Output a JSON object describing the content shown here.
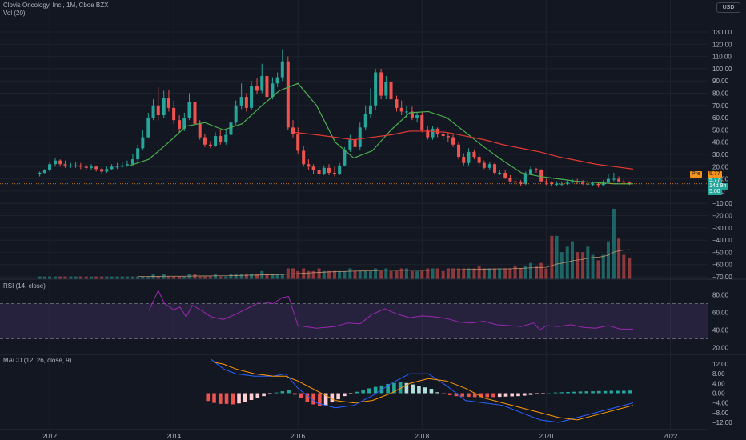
{
  "header": {
    "title": "Clovis Oncology, Inc., 1M, Cboe BZX",
    "vol_label": "Vol (20)",
    "currency_button": "USD"
  },
  "price_tags": {
    "pre_label": "Pre",
    "pre_value": "5.77",
    "last_value": "5.77",
    "countdown": "14d 9h",
    "last_extra": "5.00",
    "pre_color": "#f7931a",
    "last_color": "#26a69a"
  },
  "rsi_panel": {
    "label": "RSI (14, close)"
  },
  "macd_panel": {
    "label": "MACD (12, 26, close, 9)"
  },
  "time_axis": {
    "labels": [
      "2012",
      "2014",
      "2016",
      "2018",
      "2020",
      "2022"
    ]
  },
  "colors": {
    "bg": "#131722",
    "up": "#26a69a",
    "down": "#ef5350",
    "ma_fast": "#4caf50",
    "ma_slow": "#e53935",
    "rsi": "#9c27b0",
    "macd": "#2962ff",
    "signal": "#ff9800"
  },
  "chart_data": [
    {
      "type": "candlestick",
      "title": "Clovis Oncology, Inc., 1M, Cboe BZX",
      "ylim": [
        -70,
        130
      ],
      "y_ticks": [
        "130.00",
        "120.00",
        "110.00",
        "100.00",
        "90.00",
        "80.00",
        "70.00",
        "60.00",
        "50.00",
        "40.00",
        "30.00",
        "20.00",
        "10.00",
        "0.00",
        "−10.00",
        "−20.00",
        "−30.00",
        "−40.00",
        "−50.00",
        "−60.00",
        "−70.00"
      ],
      "x_range": [
        2011.2,
        2022.6
      ],
      "candles_x": [
        2011.84,
        2011.92,
        2012.0,
        2012.09,
        2012.17,
        2012.25,
        2012.34,
        2012.42,
        2012.5,
        2012.59,
        2012.67,
        2012.75,
        2012.84,
        2012.92,
        2013.0,
        2013.09,
        2013.17,
        2013.25,
        2013.34,
        2013.42,
        2013.5,
        2013.59,
        2013.67,
        2013.75,
        2013.84,
        2013.92,
        2014.0,
        2014.09,
        2014.17,
        2014.25,
        2014.34,
        2014.42,
        2014.5,
        2014.59,
        2014.67,
        2014.75,
        2014.84,
        2014.92,
        2015.0,
        2015.09,
        2015.17,
        2015.25,
        2015.34,
        2015.42,
        2015.5,
        2015.59,
        2015.67,
        2015.75,
        2015.84,
        2015.92,
        2016.0,
        2016.09,
        2016.17,
        2016.25,
        2016.34,
        2016.42,
        2016.5,
        2016.59,
        2016.67,
        2016.75,
        2016.84,
        2016.92,
        2017.0,
        2017.09,
        2017.17,
        2017.25,
        2017.34,
        2017.42,
        2017.5,
        2017.59,
        2017.67,
        2017.75,
        2017.84,
        2017.92,
        2018.0,
        2018.09,
        2018.17,
        2018.25,
        2018.34,
        2018.42,
        2018.5,
        2018.59,
        2018.67,
        2018.75,
        2018.84,
        2018.92,
        2019.0,
        2019.09,
        2019.17,
        2019.25,
        2019.34,
        2019.42,
        2019.5,
        2019.59,
        2019.67,
        2019.75,
        2019.84,
        2019.92,
        2020.0,
        2020.09,
        2020.17,
        2020.25,
        2020.34,
        2020.42,
        2020.5,
        2020.59,
        2020.67,
        2020.75,
        2020.84,
        2020.92,
        2021.0,
        2021.09,
        2021.17,
        2021.25,
        2021.34
      ],
      "open": [
        14,
        15,
        17,
        22,
        25,
        22,
        21,
        21,
        21,
        20,
        19,
        20,
        18,
        16,
        18,
        20,
        20,
        21,
        22,
        26,
        35,
        44,
        60,
        70,
        62,
        76,
        68,
        58,
        51,
        60,
        73,
        55,
        44,
        38,
        37,
        45,
        40,
        46,
        56,
        70,
        77,
        68,
        86,
        82,
        94,
        77,
        88,
        93,
        106,
        52,
        47,
        33,
        22,
        20,
        17,
        14,
        19,
        15,
        14,
        21,
        34,
        42,
        36,
        52,
        63,
        70,
        97,
        78,
        89,
        75,
        68,
        65,
        65,
        60,
        62,
        50,
        44,
        51,
        47,
        45,
        44,
        38,
        28,
        23,
        32,
        28,
        23,
        19,
        22,
        15,
        15,
        11,
        8,
        7,
        6,
        14,
        18,
        17,
        8,
        7,
        6,
        6,
        6,
        7,
        8,
        7,
        6,
        6,
        6,
        5,
        7,
        10,
        10,
        8,
        7
      ],
      "close": [
        15,
        17,
        22,
        25,
        22,
        21,
        21,
        21,
        20,
        19,
        20,
        18,
        16,
        18,
        20,
        20,
        21,
        22,
        26,
        35,
        44,
        60,
        70,
        62,
        76,
        68,
        58,
        51,
        60,
        73,
        55,
        44,
        38,
        37,
        45,
        40,
        46,
        56,
        70,
        77,
        68,
        86,
        82,
        94,
        77,
        88,
        93,
        106,
        52,
        47,
        33,
        22,
        20,
        17,
        14,
        19,
        15,
        14,
        21,
        34,
        42,
        36,
        52,
        63,
        70,
        97,
        78,
        89,
        75,
        68,
        65,
        65,
        60,
        62,
        50,
        44,
        51,
        47,
        45,
        44,
        38,
        28,
        23,
        32,
        28,
        23,
        19,
        22,
        15,
        15,
        11,
        8,
        7,
        6,
        14,
        18,
        17,
        8,
        7,
        6,
        6,
        6,
        7,
        8,
        7,
        6,
        6,
        6,
        5,
        7,
        10,
        10,
        8,
        7,
        6
      ],
      "high": [
        16,
        18,
        24,
        27,
        26,
        25,
        23,
        24,
        23,
        22,
        22,
        21,
        19,
        20,
        22,
        23,
        24,
        25,
        30,
        38,
        50,
        64,
        75,
        85,
        82,
        83,
        74,
        62,
        64,
        80,
        78,
        58,
        47,
        41,
        48,
        50,
        51,
        60,
        74,
        88,
        80,
        90,
        92,
        104,
        100,
        93,
        97,
        116,
        110,
        58,
        52,
        37,
        26,
        22,
        20,
        21,
        22,
        20,
        23,
        36,
        46,
        45,
        56,
        70,
        84,
        100,
        100,
        94,
        93,
        78,
        74,
        70,
        69,
        64,
        65,
        53,
        53,
        52,
        50,
        48,
        47,
        40,
        31,
        35,
        34,
        30,
        25,
        24,
        23,
        17,
        17,
        13,
        10,
        9,
        16,
        20,
        19,
        18,
        10,
        8,
        8,
        8,
        9,
        10,
        10,
        9,
        9,
        8,
        7,
        9,
        14,
        15,
        12,
        10,
        8
      ],
      "low": [
        12,
        14,
        16,
        20,
        20,
        19,
        19,
        19,
        18,
        17,
        17,
        16,
        14,
        15,
        17,
        18,
        19,
        20,
        21,
        24,
        34,
        43,
        58,
        58,
        60,
        65,
        55,
        48,
        49,
        58,
        53,
        42,
        36,
        35,
        36,
        38,
        38,
        44,
        54,
        67,
        65,
        66,
        79,
        80,
        74,
        75,
        85,
        90,
        50,
        44,
        30,
        20,
        17,
        14,
        12,
        13,
        13,
        12,
        13,
        20,
        32,
        34,
        34,
        50,
        60,
        66,
        75,
        75,
        72,
        65,
        62,
        60,
        58,
        56,
        48,
        42,
        42,
        44,
        42,
        40,
        36,
        26,
        21,
        21,
        26,
        21,
        18,
        17,
        13,
        13,
        10,
        7,
        5,
        4,
        5,
        13,
        15,
        7,
        5,
        4,
        4,
        4,
        5,
        6,
        6,
        5,
        5,
        4,
        3,
        4,
        6,
        8,
        7,
        6,
        5
      ],
      "volume": [
        1,
        1,
        1,
        1,
        1,
        1,
        1,
        1,
        1,
        1,
        1,
        1,
        1,
        1,
        1,
        1,
        1,
        1,
        1,
        1,
        1,
        1,
        2,
        1,
        2,
        1,
        1,
        1,
        1,
        2,
        2,
        1,
        1,
        1,
        2,
        1,
        1,
        2,
        2,
        2,
        2,
        2,
        2,
        3,
        2,
        2,
        2,
        2,
        4,
        4,
        3,
        4,
        3,
        3,
        4,
        3,
        3,
        3,
        3,
        3,
        4,
        3,
        3,
        3,
        3,
        4,
        3,
        4,
        3,
        3,
        4,
        4,
        3,
        3,
        3,
        4,
        4,
        4,
        3,
        4,
        4,
        4,
        4,
        4,
        4,
        5,
        4,
        4,
        4,
        4,
        4,
        4,
        5,
        4,
        5,
        6,
        5,
        6,
        4,
        16,
        16,
        10,
        12,
        14,
        10,
        10,
        12,
        9,
        7,
        9,
        14,
        26,
        15,
        9,
        8
      ],
      "series": [
        {
          "name": "MA fast",
          "x": [
            2013.3,
            2013.6,
            2013.9,
            2014.2,
            2014.5,
            2014.8,
            2015.1,
            2015.4,
            2015.7,
            2016.0,
            2016.3,
            2016.6,
            2016.9,
            2017.2,
            2017.5,
            2017.8,
            2018.1,
            2018.4,
            2018.7,
            2019.0,
            2019.3,
            2019.6,
            2019.9,
            2020.2,
            2020.5,
            2020.8,
            2021.1,
            2021.4
          ],
          "values": [
            21,
            26,
            39,
            53,
            56,
            50,
            55,
            69,
            82,
            88,
            70,
            40,
            27,
            33,
            50,
            64,
            65,
            60,
            48,
            36,
            25,
            15,
            12,
            10,
            8,
            7,
            6,
            6
          ]
        },
        {
          "name": "MA slow",
          "x": [
            2015.95,
            2016.3,
            2016.6,
            2016.9,
            2017.2,
            2017.5,
            2017.8,
            2018.1,
            2018.4,
            2018.7,
            2019.0,
            2019.3,
            2019.6,
            2019.9,
            2020.2,
            2020.5,
            2020.8,
            2021.1,
            2021.4
          ],
          "values": [
            48,
            46,
            44,
            42,
            44,
            46,
            49,
            49,
            48,
            45,
            42,
            38,
            35,
            32,
            28,
            25,
            22,
            20,
            18
          ]
        }
      ]
    },
    {
      "type": "line",
      "title": "RSI (14, close)",
      "ylim": [
        15,
        95
      ],
      "y_ticks": [
        "80.00",
        "60.00",
        "40.00",
        "20.00"
      ],
      "bands": [
        70,
        30
      ],
      "x": [
        2013.6,
        2013.75,
        2013.85,
        2014.0,
        2014.1,
        2014.2,
        2014.3,
        2014.45,
        2014.6,
        2014.8,
        2015.0,
        2015.2,
        2015.4,
        2015.6,
        2015.75,
        2015.85,
        2016.0,
        2016.3,
        2016.6,
        2016.8,
        2017.0,
        2017.2,
        2017.4,
        2017.6,
        2017.8,
        2018.0,
        2018.2,
        2018.4,
        2018.6,
        2018.8,
        2019.0,
        2019.2,
        2019.4,
        2019.6,
        2019.8,
        2019.9,
        2020.0,
        2020.2,
        2020.4,
        2020.6,
        2020.8,
        2021.0,
        2021.2,
        2021.4
      ],
      "values": [
        62,
        85,
        70,
        63,
        66,
        55,
        68,
        62,
        55,
        52,
        58,
        65,
        72,
        70,
        77,
        78,
        45,
        42,
        44,
        48,
        47,
        58,
        64,
        58,
        54,
        56,
        55,
        53,
        49,
        48,
        50,
        46,
        45,
        44,
        48,
        40,
        45,
        44,
        46,
        43,
        42,
        45,
        41,
        41
      ]
    },
    {
      "type": "line",
      "title": "MACD (12, 26, close, 9)",
      "ylim": [
        -14,
        15
      ],
      "y_ticks": [
        "12.00",
        "8.00",
        "4.00",
        "0.00",
        "−4.00",
        "−8.00",
        "−12.00"
      ],
      "histogram_x": [
        2014.55,
        2014.65,
        2014.75,
        2014.85,
        2014.95,
        2015.05,
        2015.15,
        2015.25,
        2015.35,
        2015.45,
        2015.55,
        2015.65,
        2015.75,
        2015.85,
        2015.95,
        2016.05,
        2016.15,
        2016.25,
        2016.35,
        2016.45,
        2016.55,
        2016.65,
        2016.75,
        2016.85,
        2016.95,
        2017.05,
        2017.15,
        2017.25,
        2017.35,
        2017.45,
        2017.55,
        2017.65,
        2017.75,
        2017.85,
        2017.95,
        2018.05,
        2018.15,
        2018.25,
        2018.35,
        2018.45,
        2018.55,
        2018.65,
        2018.75,
        2018.85,
        2018.95,
        2019.05,
        2019.15,
        2019.25,
        2019.35,
        2019.45,
        2019.55,
        2019.65,
        2019.75,
        2019.85,
        2019.95,
        2020.05,
        2020.15,
        2020.25,
        2020.35,
        2020.45,
        2020.55,
        2020.65,
        2020.75,
        2020.85,
        2020.95,
        2021.05,
        2021.15,
        2021.25,
        2021.35
      ],
      "histogram": [
        -3.2,
        -4.0,
        -4.4,
        -4.4,
        -4.6,
        -4.2,
        -3.6,
        -2.8,
        -2.0,
        -1.2,
        -0.5,
        0.3,
        0.8,
        1.2,
        -0.6,
        -2.0,
        -3.6,
        -4.6,
        -5.4,
        -5.0,
        -3.8,
        -2.5,
        -1.2,
        -0.2,
        0.6,
        1.4,
        2.0,
        2.6,
        3.2,
        3.8,
        4.2,
        4.6,
        4.2,
        3.6,
        3.0,
        2.4,
        1.8,
        0.4,
        -0.4,
        -0.8,
        -1.2,
        -1.4,
        -1.5,
        -1.6,
        -1.6,
        -1.6,
        -1.6,
        -1.5,
        -1.4,
        -1.3,
        -1.2,
        -1.0,
        -0.7,
        -0.4,
        -0.2,
        0.1,
        0.3,
        0.4,
        0.5,
        0.6,
        0.7,
        0.8,
        0.8,
        0.9,
        0.9,
        1.0,
        1.0,
        1.0,
        1.1
      ],
      "series": [
        {
          "name": "MACD",
          "x": [
            2014.6,
            2014.8,
            2015.0,
            2015.3,
            2015.6,
            2015.8,
            2016.0,
            2016.3,
            2016.6,
            2016.9,
            2017.2,
            2017.5,
            2017.8,
            2018.1,
            2018.4,
            2018.7,
            2019.0,
            2019.3,
            2019.6,
            2019.9,
            2020.2,
            2020.5,
            2020.8,
            2021.1,
            2021.4
          ],
          "values": [
            14,
            10,
            8,
            7,
            7,
            8,
            2,
            -4,
            -6,
            -5,
            -1,
            4,
            8,
            8,
            3,
            -3,
            -4,
            -5,
            -8,
            -11,
            -12,
            -10,
            -8,
            -6,
            -4
          ]
        },
        {
          "name": "Signal",
          "x": [
            2014.6,
            2014.8,
            2015.0,
            2015.3,
            2015.6,
            2015.8,
            2016.0,
            2016.3,
            2016.6,
            2016.9,
            2017.2,
            2017.5,
            2017.8,
            2018.1,
            2018.4,
            2018.7,
            2019.0,
            2019.3,
            2019.6,
            2019.9,
            2020.2,
            2020.5,
            2020.8,
            2021.1,
            2021.4
          ],
          "values": [
            13,
            12,
            10,
            8,
            7,
            7,
            5,
            1,
            -3,
            -4,
            -3,
            0,
            4,
            6,
            5,
            2,
            -2,
            -4,
            -6,
            -8,
            -10,
            -11,
            -9,
            -7,
            -5
          ]
        }
      ]
    }
  ]
}
